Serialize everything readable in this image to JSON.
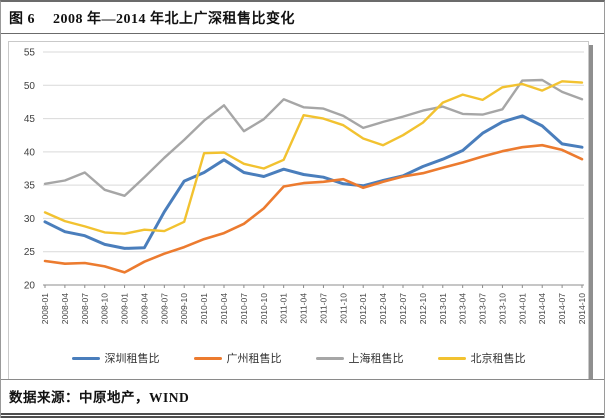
{
  "document": {
    "figure_label": "图 6",
    "title": "2008 年—2014 年北上广深租售比变化",
    "source": "数据来源：中原地产，WIND"
  },
  "chart_data": {
    "type": "line",
    "title": "2008 年—2014 年北上广深租售比变化",
    "xlabel": "",
    "ylabel": "",
    "ylim": [
      20,
      55
    ],
    "ytick_step": 5,
    "grid": true,
    "legend_position": "bottom",
    "categories": [
      "2008-01",
      "2008-04",
      "2008-07",
      "2008-10",
      "2009-01",
      "2009-04",
      "2009-07",
      "2009-10",
      "2010-01",
      "2010-04",
      "2010-07",
      "2010-10",
      "2011-01",
      "2011-04",
      "2011-07",
      "2011-10",
      "2012-01",
      "2012-04",
      "2012-07",
      "2012-10",
      "2013-01",
      "2013-04",
      "2013-07",
      "2013-10",
      "2014-01",
      "2014-04",
      "2014-07",
      "2014-10"
    ],
    "series": [
      {
        "name": "深圳租售比",
        "color": "#4a7ebc",
        "width": 3,
        "values": [
          29.5,
          28.0,
          27.4,
          26.1,
          25.5,
          25.6,
          31.0,
          35.6,
          36.9,
          38.8,
          36.9,
          36.3,
          37.4,
          36.6,
          36.2,
          35.2,
          34.9,
          35.7,
          36.4,
          37.8,
          38.9,
          40.2,
          42.8,
          44.5,
          45.4,
          43.9,
          41.2,
          40.7
        ]
      },
      {
        "name": "广州租售比",
        "color": "#ec7b2f",
        "width": 2.6,
        "values": [
          23.6,
          23.2,
          23.3,
          22.8,
          21.9,
          23.5,
          24.7,
          25.7,
          26.9,
          27.8,
          29.2,
          31.5,
          34.8,
          35.3,
          35.5,
          35.9,
          34.6,
          35.5,
          36.3,
          36.8,
          37.6,
          38.4,
          39.3,
          40.1,
          40.7,
          41.0,
          40.3,
          38.9
        ]
      },
      {
        "name": "上海租售比",
        "color": "#a6a6a6",
        "width": 2.4,
        "values": [
          35.2,
          35.7,
          36.9,
          34.3,
          33.4,
          36.2,
          39.1,
          41.8,
          44.7,
          47.0,
          43.1,
          44.9,
          47.9,
          46.7,
          46.5,
          45.4,
          43.6,
          44.5,
          45.3,
          46.2,
          46.8,
          45.7,
          45.6,
          46.4,
          50.7,
          50.8,
          49.0,
          47.9
        ]
      },
      {
        "name": "北京租售比",
        "color": "#f2c230",
        "width": 2.4,
        "values": [
          30.9,
          29.6,
          28.8,
          27.9,
          27.7,
          28.3,
          28.1,
          29.5,
          39.8,
          39.9,
          38.2,
          37.5,
          38.8,
          45.5,
          45.0,
          44.0,
          42.0,
          41.0,
          42.5,
          44.4,
          47.4,
          48.6,
          47.8,
          49.7,
          50.2,
          49.2,
          50.6,
          50.4
        ]
      }
    ]
  }
}
